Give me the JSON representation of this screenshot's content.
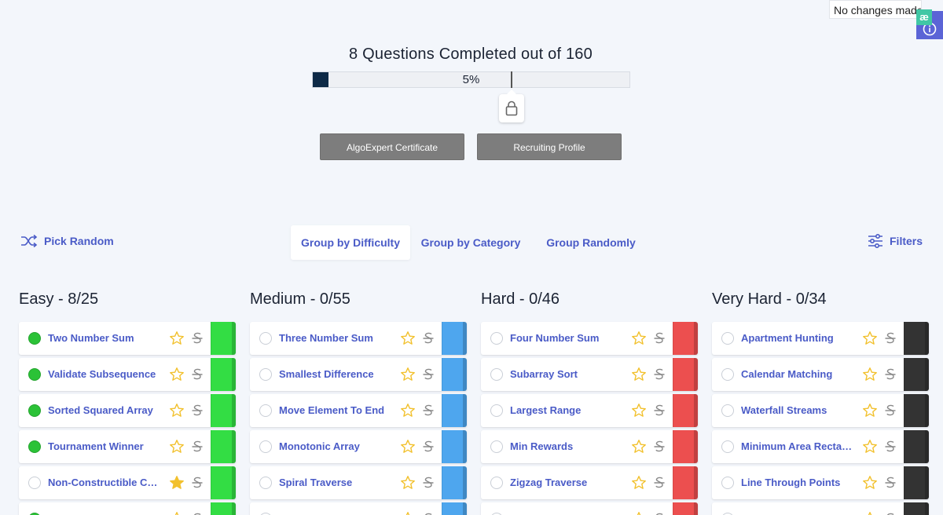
{
  "toast": {
    "text": "No changes made"
  },
  "progress": {
    "title": "8 Questions Completed out of 160",
    "percent_label": "5%",
    "completed": 8,
    "total": 160
  },
  "buttons": {
    "certificate": "AlgoExpert Certificate",
    "recruiting": "Recruiting Profile"
  },
  "controls": {
    "pick_random": "Pick Random",
    "group_by_difficulty": "Group by Difficulty",
    "group_by_category": "Group by Category",
    "group_randomly": "Group Randomly",
    "filters": "Filters"
  },
  "colors": {
    "accent": "#4a5bc7",
    "easy": "#33dd44",
    "medium": "#4ea6ee",
    "hard": "#ec4f4f",
    "very_hard": "#333333",
    "done": "#2bc237",
    "star": "#f2c12e"
  },
  "columns": [
    {
      "title": "Easy - 8/25",
      "difficulty": "easy",
      "questions": [
        {
          "name": "Two Number Sum",
          "done": true,
          "starred": false
        },
        {
          "name": "Validate Subsequence",
          "done": true,
          "starred": false
        },
        {
          "name": "Sorted Squared Array",
          "done": true,
          "starred": false
        },
        {
          "name": "Tournament Winner",
          "done": true,
          "starred": false
        },
        {
          "name": "Non-Constructible Change",
          "done": false,
          "starred": true
        },
        {
          "name": "",
          "done": true,
          "starred": false
        }
      ]
    },
    {
      "title": "Medium - 0/55",
      "difficulty": "medium",
      "questions": [
        {
          "name": "Three Number Sum",
          "done": false,
          "starred": false
        },
        {
          "name": "Smallest Difference",
          "done": false,
          "starred": false
        },
        {
          "name": "Move Element To End",
          "done": false,
          "starred": false
        },
        {
          "name": "Monotonic Array",
          "done": false,
          "starred": false
        },
        {
          "name": "Spiral Traverse",
          "done": false,
          "starred": false
        },
        {
          "name": "",
          "done": false,
          "starred": false
        }
      ]
    },
    {
      "title": "Hard - 0/46",
      "difficulty": "hard",
      "questions": [
        {
          "name": "Four Number Sum",
          "done": false,
          "starred": false
        },
        {
          "name": "Subarray Sort",
          "done": false,
          "starred": false
        },
        {
          "name": "Largest Range",
          "done": false,
          "starred": false
        },
        {
          "name": "Min Rewards",
          "done": false,
          "starred": false
        },
        {
          "name": "Zigzag Traverse",
          "done": false,
          "starred": false
        },
        {
          "name": "",
          "done": false,
          "starred": false
        }
      ]
    },
    {
      "title": "Very Hard - 0/34",
      "difficulty": "veryhard",
      "questions": [
        {
          "name": "Apartment Hunting",
          "done": false,
          "starred": false
        },
        {
          "name": "Calendar Matching",
          "done": false,
          "starred": false
        },
        {
          "name": "Waterfall Streams",
          "done": false,
          "starred": false
        },
        {
          "name": "Minimum Area Rectangle",
          "done": false,
          "starred": false
        },
        {
          "name": "Line Through Points",
          "done": false,
          "starred": false
        },
        {
          "name": "",
          "done": false,
          "starred": false
        }
      ]
    }
  ]
}
